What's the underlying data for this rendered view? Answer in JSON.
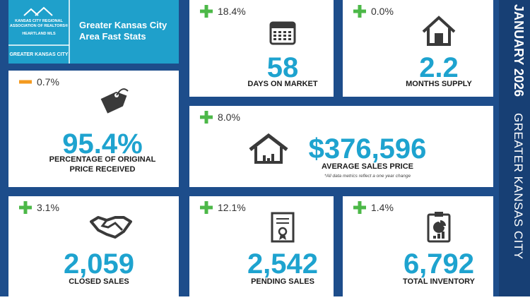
{
  "header": {
    "logo_lines": [
      "KANSAS CITY REGIONAL",
      "ASSOCIATION OF REALTORS®"
    ],
    "logo_sub": "HEARTLAND MLS",
    "region_tag": "GREATER KANSAS CITY",
    "title_lines": [
      "Greater Kansas City",
      "Area Fast Stats"
    ]
  },
  "sidebar": {
    "period": "JANUARY 2026",
    "region": "GREATER KANSAS CITY"
  },
  "note": "*All data metrics reflect a one year change",
  "stats": [
    {
      "trend": "up",
      "change": "18.4%",
      "value": "58",
      "label": [
        "DAYS ON MARKET"
      ]
    },
    {
      "trend": "up",
      "change": "0.0%",
      "value": "2.2",
      "label": [
        "MONTHS SUPPLY"
      ]
    },
    {
      "trend": "down",
      "change": "0.7%",
      "value": "95.4%",
      "label": [
        "PERCENTAGE OF ORIGINAL",
        "PRICE RECEIVED"
      ]
    },
    {
      "trend": "up",
      "change": "8.0%",
      "value": "$376,596",
      "label": [
        "AVERAGE SALES PRICE"
      ]
    },
    {
      "trend": "up",
      "change": "3.1%",
      "value": "2,059",
      "label": [
        "CLOSED SALES"
      ]
    },
    {
      "trend": "up",
      "change": "12.1%",
      "value": "2,542",
      "label": [
        "PENDING SALES"
      ]
    },
    {
      "trend": "up",
      "change": "1.4%",
      "value": "6,792",
      "label": [
        "TOTAL INVENTORY"
      ]
    }
  ]
}
